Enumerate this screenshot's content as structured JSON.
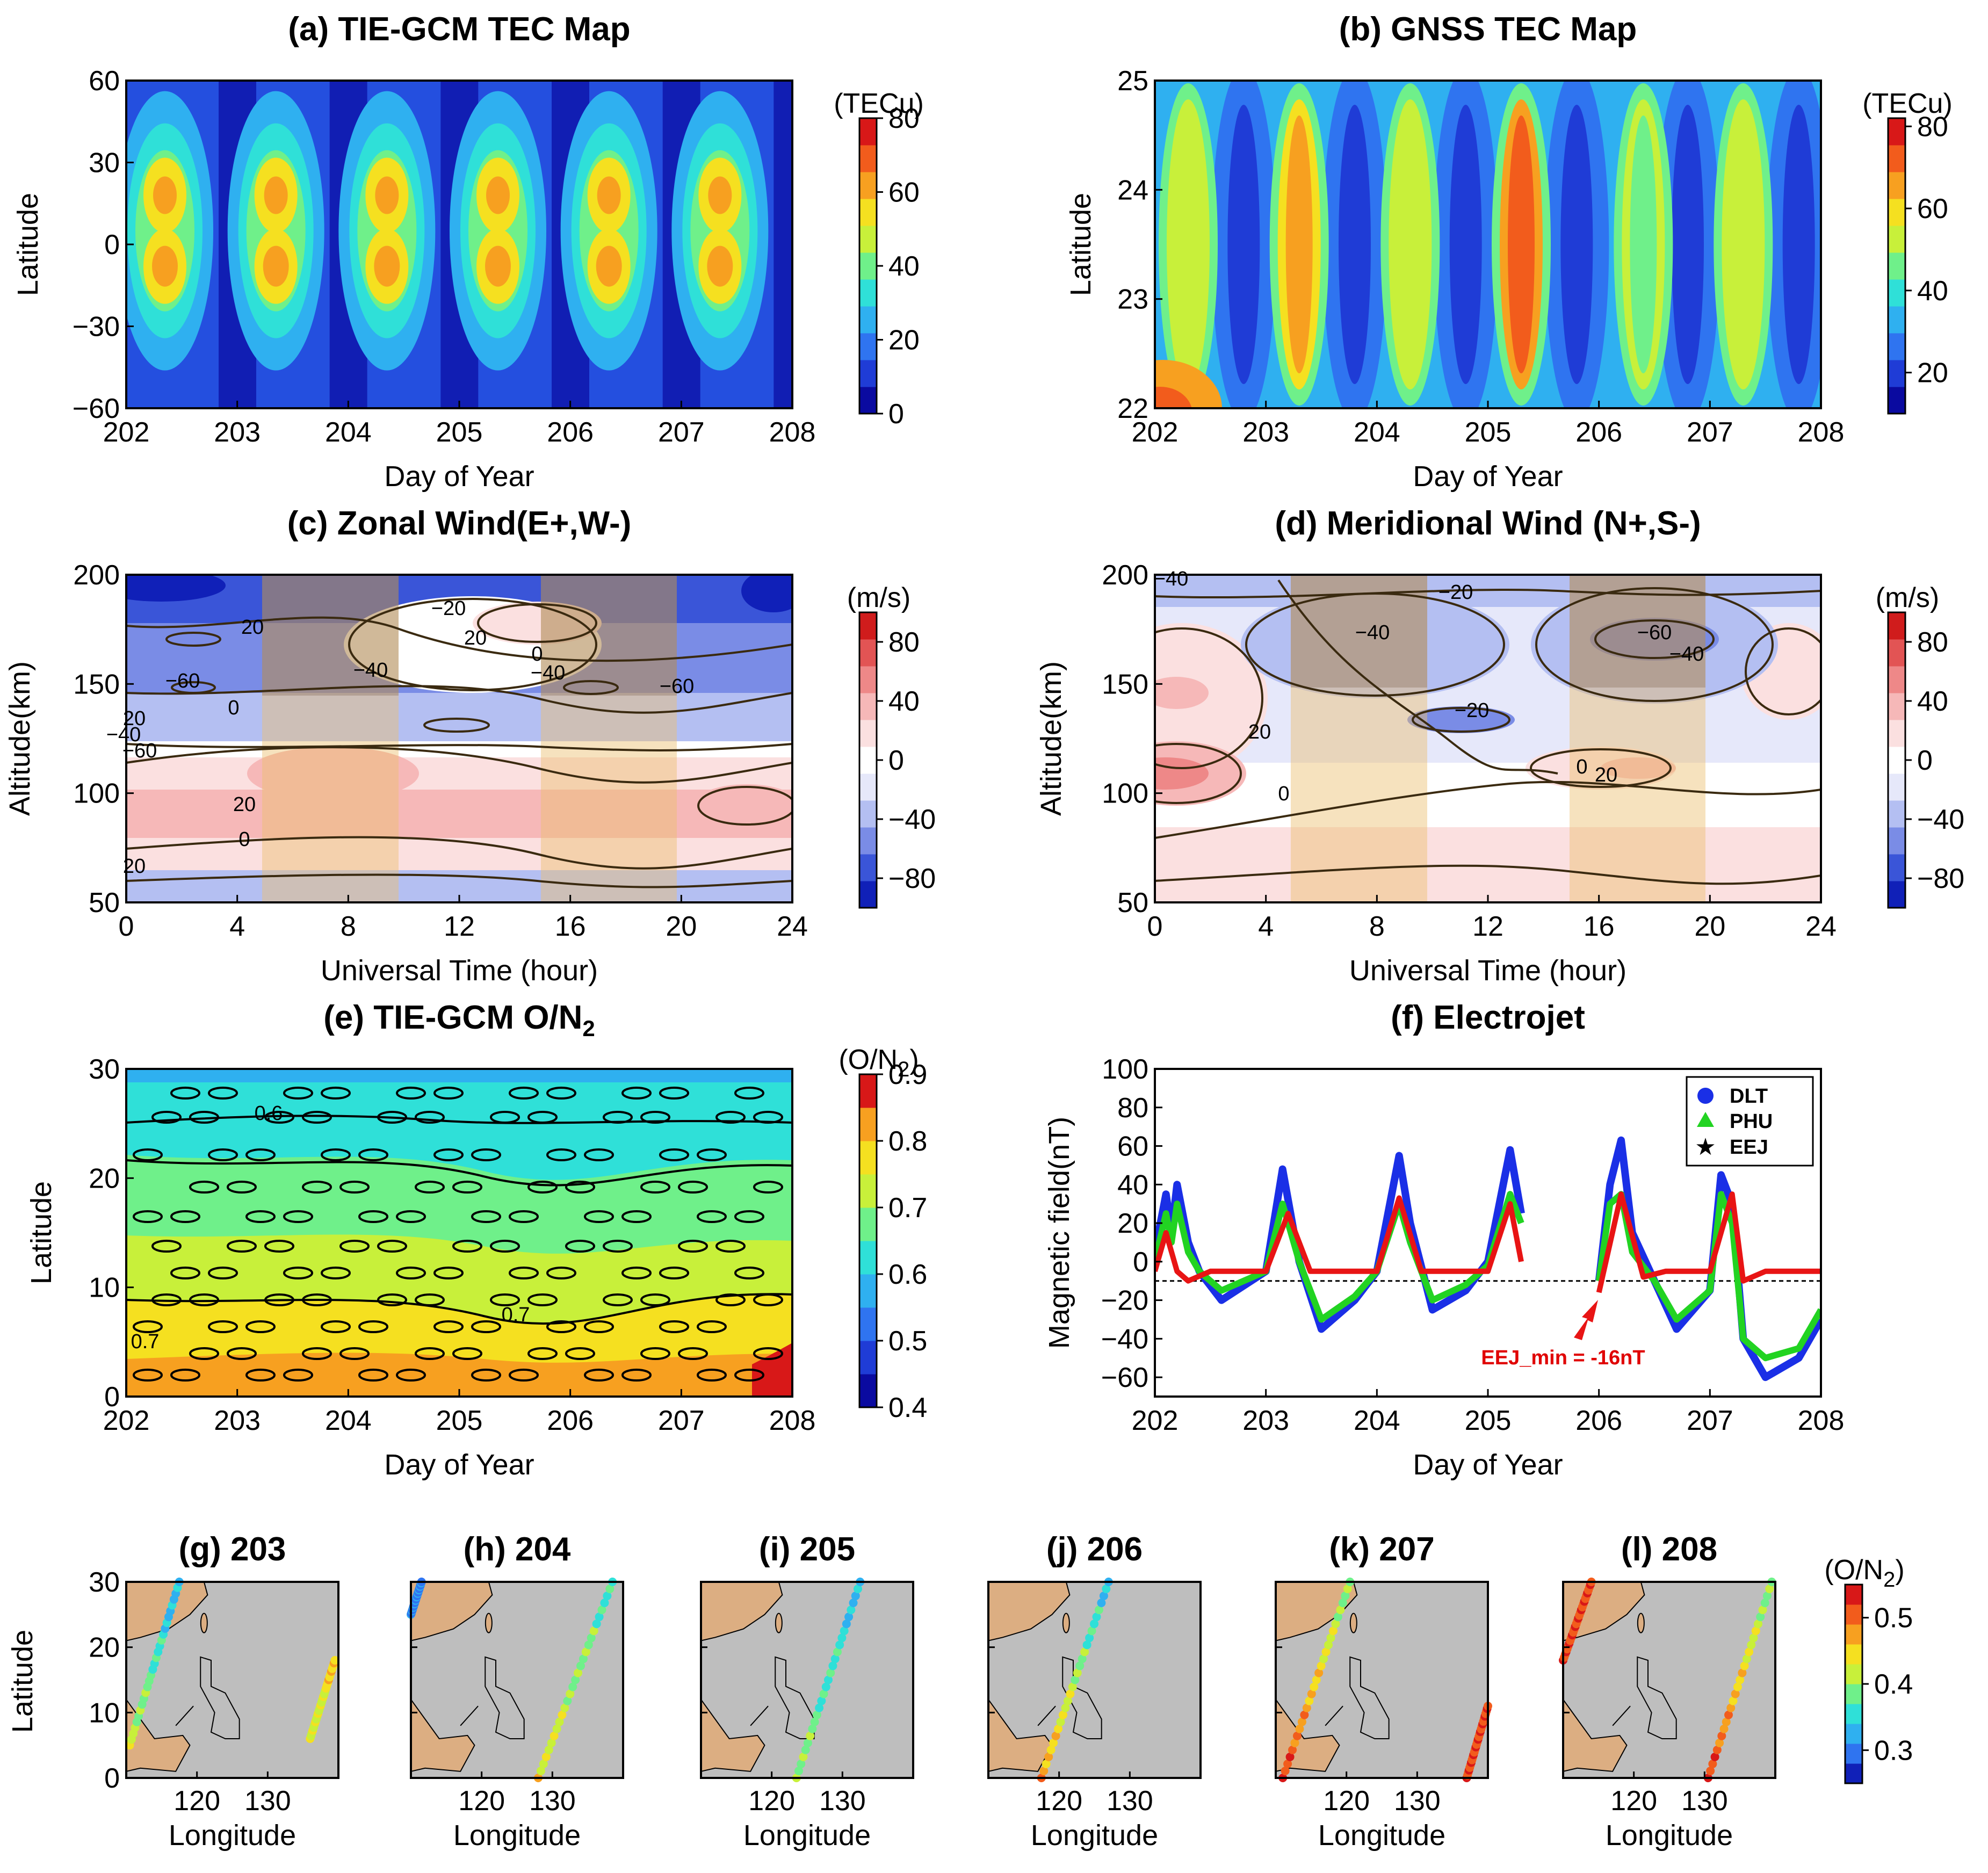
{
  "colors": {
    "jet": [
      "#0a0aa0",
      "#1f3cd6",
      "#2f74f0",
      "#2fb0f0",
      "#2fe0d8",
      "#6ff08a",
      "#c8f03a",
      "#f5e020",
      "#f7a020",
      "#f25c1c",
      "#d81818"
    ],
    "bwr": [
      "#1020b8",
      "#3a55d8",
      "#7a8ce6",
      "#b4bff2",
      "#e6e8fa",
      "#ffffff",
      "#fbe0e0",
      "#f6b8b8",
      "#ee8888",
      "#e25454",
      "#d01c1c"
    ],
    "land": "#dcae82",
    "ocean": "#bebebe",
    "tan_shade": "rgba(236,190,110,0.45)",
    "dark_shade": "rgba(120,90,70,0.35)",
    "dlt": "#1a2fe6",
    "phu": "#22d322",
    "eej": "#e81414"
  },
  "chart_data": [
    {
      "id": "a",
      "type": "heatmap",
      "title": "(a) TIE-GCM TEC Map",
      "xlabel": "Day of Year",
      "ylabel": "Latitude",
      "xlim": [
        202,
        208
      ],
      "ylim": [
        -60,
        60
      ],
      "xticks": [
        "202",
        "203",
        "204",
        "205",
        "206",
        "207",
        "208"
      ],
      "yticks": [
        "−60",
        "−30",
        "0",
        "30",
        "60"
      ],
      "colorbar": {
        "unit": "(TECu)",
        "ticks": [
          "0",
          "20",
          "40",
          "60",
          "80"
        ],
        "range": [
          0,
          80
        ]
      },
      "daily_peaks": [
        {
          "day": 202.3,
          "lat_north": 18,
          "lat_south": -8,
          "peak_tec": 62
        },
        {
          "day": 203.3,
          "lat_north": 18,
          "lat_south": -8,
          "peak_tec": 64
        },
        {
          "day": 204.3,
          "lat_north": 18,
          "lat_south": -8,
          "peak_tec": 60
        },
        {
          "day": 205.3,
          "lat_north": 18,
          "lat_south": -8,
          "peak_tec": 62
        },
        {
          "day": 206.3,
          "lat_north": 18,
          "lat_south": -8,
          "peak_tec": 62
        },
        {
          "day": 207.3,
          "lat_north": 18,
          "lat_south": -8,
          "peak_tec": 64
        }
      ]
    },
    {
      "id": "b",
      "type": "heatmap",
      "title": "(b) GNSS TEC Map",
      "xlabel": "Day of Year",
      "ylabel": "Latitude",
      "xlim": [
        202,
        208
      ],
      "ylim": [
        22,
        25
      ],
      "xticks": [
        "202",
        "203",
        "204",
        "205",
        "206",
        "207",
        "208"
      ],
      "yticks": [
        "22",
        "23",
        "24",
        "25"
      ],
      "colorbar": {
        "unit": "(TECu)",
        "ticks": [
          "20",
          "40",
          "60",
          "80"
        ],
        "range": [
          10,
          82
        ]
      },
      "daily_peaks": [
        {
          "day": 202.3,
          "peak_tec": 55
        },
        {
          "day": 203.3,
          "peak_tec": 66
        },
        {
          "day": 204.3,
          "peak_tec": 50
        },
        {
          "day": 205.3,
          "peak_tec": 72
        },
        {
          "day": 206.4,
          "peak_tec": 48
        },
        {
          "day": 207.3,
          "peak_tec": 54
        }
      ]
    },
    {
      "id": "c",
      "type": "heatmap",
      "title": "(c) Zonal Wind(E+,W-)",
      "xlabel": "Universal Time (hour)",
      "ylabel": "Altitude(km)",
      "xlim": [
        0,
        24
      ],
      "ylim": [
        50,
        200
      ],
      "xticks": [
        "0",
        "4",
        "8",
        "12",
        "16",
        "20",
        "24"
      ],
      "yticks": [
        "50",
        "100",
        "150",
        "200"
      ],
      "colorbar": {
        "unit": "(m/s)",
        "ticks": [
          "−80",
          "−40",
          "0",
          "40",
          "80"
        ],
        "range": [
          -100,
          100
        ]
      },
      "contour_labels": [
        "20",
        "0",
        "−20",
        "−40",
        "−60",
        "−40",
        "−60",
        "20",
        "0",
        "20",
        "−40",
        "−60",
        "20",
        "0",
        "20"
      ],
      "shaded_intervals_ut": [
        [
          5,
          10
        ],
        [
          15,
          20
        ]
      ]
    },
    {
      "id": "d",
      "type": "heatmap",
      "title": "(d) Meridional Wind (N+,S-)",
      "xlabel": "Universal Time (hour)",
      "ylabel": "Altitude(km)",
      "xlim": [
        0,
        24
      ],
      "ylim": [
        50,
        200
      ],
      "xticks": [
        "0",
        "4",
        "8",
        "12",
        "16",
        "20",
        "24"
      ],
      "yticks": [
        "50",
        "100",
        "150",
        "200"
      ],
      "colorbar": {
        "unit": "(m/s)",
        "ticks": [
          "−80",
          "−40",
          "0",
          "40",
          "80"
        ],
        "range": [
          -100,
          100
        ]
      },
      "contour_labels": [
        "−40",
        "−20",
        "−40",
        "−60",
        "−40",
        "20",
        "−20",
        "0",
        "20",
        "0"
      ],
      "shaded_intervals_ut": [
        [
          5,
          10
        ],
        [
          15,
          20
        ]
      ]
    },
    {
      "id": "e",
      "type": "heatmap",
      "title": "(e) TIE-GCM O/N",
      "title_sub": "2",
      "xlabel": "Day of Year",
      "ylabel": "Latitude",
      "xlim": [
        202,
        208
      ],
      "ylim": [
        0,
        30
      ],
      "xticks": [
        "202",
        "203",
        "204",
        "205",
        "206",
        "207",
        "208"
      ],
      "yticks": [
        "0",
        "10",
        "20",
        "30"
      ],
      "colorbar": {
        "unit": "(O/N",
        "unit_sub": "2",
        "unit_end": ")",
        "ticks": [
          "0.4",
          "0.5",
          "0.6",
          "0.7",
          "0.8",
          "0.9"
        ],
        "range": [
          0.4,
          0.9
        ]
      },
      "contour_labels": [
        "0.6",
        "0.7",
        "0.7"
      ]
    },
    {
      "id": "f",
      "type": "line",
      "title": "(f) Electrojet",
      "xlabel": "Day of Year",
      "ylabel": "Magnetic field(nT)",
      "xlim": [
        202,
        208
      ],
      "ylim": [
        -70,
        100
      ],
      "xticks": [
        "202",
        "203",
        "204",
        "205",
        "206",
        "207",
        "208"
      ],
      "yticks": [
        "−60",
        "−40",
        "−20",
        "0",
        "20",
        "40",
        "60",
        "80",
        "100"
      ],
      "reference_line": -10,
      "annotation": {
        "text": "EEJ_min = -16nT",
        "x": 206.0,
        "y": -16
      },
      "series": [
        {
          "name": "DLT",
          "marker": "circle",
          "x": [
            202,
            202.1,
            202.15,
            202.2,
            202.3,
            202.4,
            202.6,
            203.0,
            203.15,
            203.3,
            203.5,
            203.8,
            204.0,
            204.2,
            204.3,
            204.5,
            204.8,
            205.0,
            205.2,
            205.3,
            206.0,
            206.1,
            206.2,
            206.3,
            206.5,
            206.7,
            207.0,
            207.1,
            207.2,
            207.3,
            207.5,
            207.8,
            208.0
          ],
          "y": [
            5,
            35,
            15,
            40,
            10,
            -5,
            -20,
            -5,
            48,
            0,
            -35,
            -20,
            -5,
            55,
            20,
            -25,
            -15,
            0,
            58,
            25,
            -10,
            40,
            63,
            15,
            -10,
            -35,
            -15,
            45,
            30,
            -40,
            -60,
            -50,
            -30
          ]
        },
        {
          "name": "PHU",
          "marker": "triangle",
          "x": [
            202,
            202.1,
            202.15,
            202.2,
            202.3,
            202.4,
            202.6,
            203.0,
            203.15,
            203.3,
            203.5,
            203.8,
            204.0,
            204.2,
            204.3,
            204.5,
            204.8,
            205.0,
            205.2,
            205.3,
            206.0,
            206.1,
            206.2,
            206.3,
            206.5,
            206.7,
            207.0,
            207.1,
            207.2,
            207.3,
            207.5,
            207.8,
            208.0
          ],
          "y": [
            0,
            25,
            10,
            30,
            5,
            -5,
            -15,
            -5,
            30,
            0,
            -30,
            -18,
            -5,
            30,
            10,
            -20,
            -12,
            -2,
            35,
            20,
            -10,
            30,
            35,
            5,
            -10,
            -30,
            -15,
            35,
            20,
            -40,
            -50,
            -45,
            -25
          ]
        },
        {
          "name": "EEJ",
          "marker": "star",
          "x": [
            202,
            202.1,
            202.2,
            202.3,
            202.5,
            202.8,
            203.0,
            203.2,
            203.4,
            203.6,
            204.0,
            204.2,
            204.4,
            204.6,
            205.0,
            205.2,
            205.3,
            206.0,
            206.2,
            206.4,
            206.6,
            207.0,
            207.2,
            207.3,
            207.5,
            208.0
          ],
          "y": [
            -5,
            15,
            -5,
            -10,
            -5,
            -5,
            -5,
            25,
            -5,
            -5,
            -5,
            33,
            -5,
            -5,
            -5,
            30,
            0,
            -16,
            35,
            -8,
            -5,
            -5,
            35,
            -10,
            -5,
            -5
          ]
        }
      ]
    },
    {
      "id": "g-l",
      "type": "scatter",
      "ylabel": "Latitude",
      "xlabel": "Longitude",
      "xlim": [
        110,
        140
      ],
      "ylim": [
        0,
        30
      ],
      "xticks": [
        "120",
        "130"
      ],
      "yticks": [
        "0",
        "10",
        "20",
        "30"
      ],
      "colorbar": {
        "unit": "(O/N",
        "unit_sub": "2",
        "unit_end": ")",
        "ticks": [
          "0.3",
          "0.4",
          "0.5"
        ],
        "range": [
          0.25,
          0.55
        ]
      },
      "panels": [
        {
          "title": "(g) 203",
          "tracks": [
            {
              "lon0": 110.5,
              "lat0": 5,
              "lon1": 117.5,
              "lat1": 30,
              "v0": 0.42,
              "v1": 0.32
            },
            {
              "lon0": 136,
              "lat0": 6,
              "lon1": 139.5,
              "lat1": 18,
              "v0": 0.42,
              "v1": 0.45
            }
          ]
        },
        {
          "title": "(h) 204",
          "tracks": [
            {
              "lon0": 110,
              "lat0": 25,
              "lon1": 111.5,
              "lat1": 30,
              "v0": 0.3,
              "v1": 0.3
            },
            {
              "lon0": 128,
              "lat0": 0,
              "lon1": 138.5,
              "lat1": 30,
              "v0": 0.44,
              "v1": 0.36
            }
          ]
        },
        {
          "title": "(i) 205",
          "tracks": [
            {
              "lon0": 123.5,
              "lat0": 0,
              "lon1": 132.5,
              "lat1": 30,
              "v0": 0.4,
              "v1": 0.33
            }
          ]
        },
        {
          "title": "(j) 206",
          "tracks": [
            {
              "lon0": 117.5,
              "lat0": 0,
              "lon1": 127,
              "lat1": 30,
              "v0": 0.48,
              "v1": 0.33
            }
          ]
        },
        {
          "title": "(k) 207",
          "tracks": [
            {
              "lon0": 111,
              "lat0": 0,
              "lon1": 120.5,
              "lat1": 30,
              "v0": 0.52,
              "v1": 0.38
            },
            {
              "lon0": 137,
              "lat0": 0,
              "lon1": 140,
              "lat1": 11,
              "v0": 0.52,
              "v1": 0.52
            }
          ]
        },
        {
          "title": "(l) 208",
          "tracks": [
            {
              "lon0": 110,
              "lat0": 18,
              "lon1": 114,
              "lat1": 30,
              "v0": 0.52,
              "v1": 0.5
            },
            {
              "lon0": 130.5,
              "lat0": 0,
              "lon1": 139.5,
              "lat1": 30,
              "v0": 0.52,
              "v1": 0.38
            }
          ]
        }
      ]
    }
  ],
  "legend": {
    "dlt": "DLT",
    "phu": "PHU",
    "eej": "EEJ"
  }
}
